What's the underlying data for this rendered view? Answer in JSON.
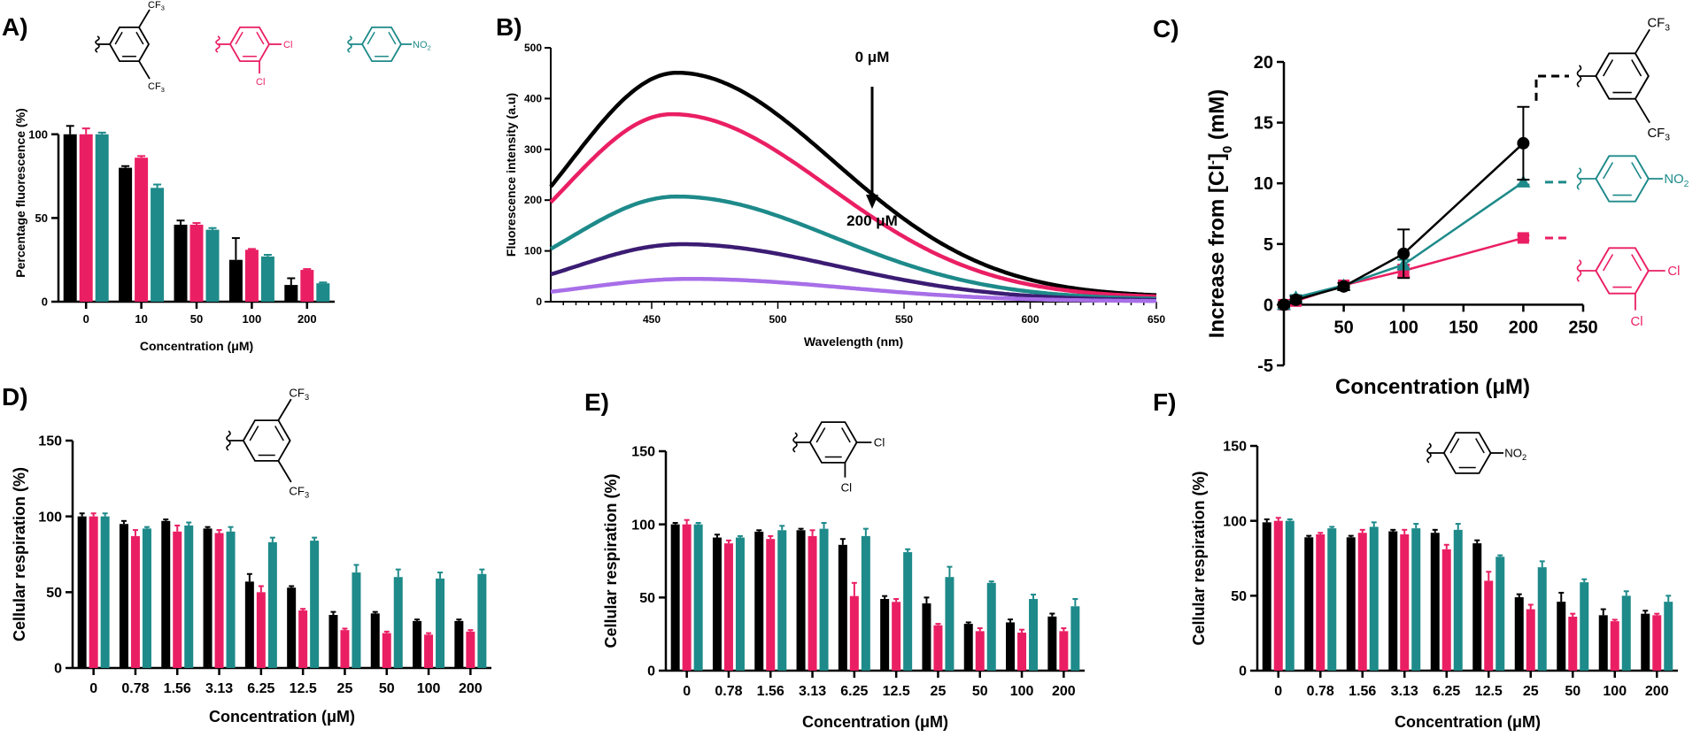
{
  "panel_labels": [
    "A)",
    "B)",
    "C)",
    "D)",
    "E)",
    "F)"
  ],
  "colors": {
    "black": "#000000",
    "pink": "#ea1f63",
    "teal": "#1e8a8a",
    "purple_dark": "#3b1c73",
    "purple_light": "#a86fe8"
  },
  "molecules": {
    "cf3": {
      "sub1": "CF3",
      "sub2": "CF3"
    },
    "dicl": {
      "sub1": "Cl",
      "sub2": "Cl"
    },
    "no2": {
      "sub1": "NO2"
    }
  },
  "chart_data": [
    {
      "panel": "A)",
      "type": "bar",
      "title": "",
      "xlabel": "Concentration (μM)",
      "ylabel": "Percentage fluorescence (%)",
      "ylim": [
        0,
        130
      ],
      "yticks": [
        0,
        50,
        100
      ],
      "categories": [
        "0",
        "10",
        "50",
        "100",
        "200"
      ],
      "series": [
        {
          "color": "#000000",
          "values": [
            100,
            80,
            46,
            25,
            10
          ],
          "errors": [
            5,
            1,
            2.5,
            13,
            4
          ]
        },
        {
          "color": "#ea1f63",
          "values": [
            100,
            86,
            46,
            31,
            19
          ],
          "errors": [
            3.5,
            1,
            1,
            0.5,
            0.5
          ]
        },
        {
          "color": "#1e8a8a",
          "values": [
            100,
            68,
            43,
            27,
            11
          ],
          "errors": [
            1,
            2,
            1,
            1,
            0.5
          ]
        }
      ]
    },
    {
      "panel": "B)",
      "type": "line",
      "title": "",
      "xlabel": "Wavelength (nm)",
      "ylabel": "Fluorescence intensity (a.u)",
      "xlim": [
        410,
        650
      ],
      "ylim": [
        0,
        500
      ],
      "xticks": [
        450,
        500,
        550,
        600,
        650
      ],
      "yticks": [
        0,
        100,
        200,
        300,
        400,
        500
      ],
      "annotation_top": "0 μM",
      "annotation_bottom": "200 μM",
      "series": [
        {
          "color": "#000000",
          "peak": 442,
          "peak_x": 460
        },
        {
          "color": "#ea1f63",
          "peak": 362,
          "peak_x": 458
        },
        {
          "color": "#1e8a8a",
          "peak": 203,
          "peak_x": 460
        },
        {
          "color": "#3b1c73",
          "peak": 111,
          "peak_x": 462
        },
        {
          "color": "#a86fe8",
          "peak": 44,
          "peak_x": 465
        }
      ]
    },
    {
      "panel": "C)",
      "type": "line",
      "title": "",
      "xlabel": "Concentration (μM)",
      "ylabel_main": "Increase from [Cl",
      "ylabel_sup": "-",
      "ylabel_mid": "]",
      "ylabel_sub": "0",
      "ylabel_end": " (mM)",
      "xlim": [
        0,
        250
      ],
      "ylim": [
        -5,
        20
      ],
      "xticks": [
        50,
        100,
        150,
        200,
        250
      ],
      "yticks": [
        -5,
        0,
        5,
        10,
        15,
        20
      ],
      "x": [
        0,
        10,
        50,
        100,
        200
      ],
      "series": [
        {
          "color": "#000000",
          "marker": "circle",
          "values": [
            0,
            0.4,
            1.5,
            4.2,
            13.3
          ],
          "errors": [
            0.2,
            0.3,
            0.3,
            2,
            3
          ]
        },
        {
          "color": "#1e8a8a",
          "marker": "triangle",
          "values": [
            0,
            0.6,
            1.6,
            3.3,
            10.1
          ],
          "errors": [
            0.1,
            0.2,
            0.2,
            0.4,
            0.2
          ]
        },
        {
          "color": "#ea1f63",
          "marker": "square",
          "values": [
            0,
            0.3,
            1.6,
            2.8,
            5.5
          ],
          "errors": [
            0.1,
            0.1,
            0.2,
            0.5,
            0.2
          ]
        }
      ]
    },
    {
      "panel": "D)",
      "type": "bar",
      "title": "",
      "xlabel": "Concentration (μM)",
      "ylabel": "Cellular respiration (%)",
      "ylim": [
        0,
        150
      ],
      "yticks": [
        0,
        50,
        100,
        150
      ],
      "categories": [
        "0",
        "0.78",
        "1.56",
        "3.13",
        "6.25",
        "12.5",
        "25",
        "50",
        "100",
        "200"
      ],
      "series": [
        {
          "color": "#000000",
          "values": [
            100,
            95,
            97,
            92,
            57,
            53,
            35,
            36,
            31,
            31
          ],
          "errors": [
            2,
            2,
            1,
            1,
            5,
            1,
            2,
            1,
            1,
            1
          ]
        },
        {
          "color": "#ea1f63",
          "values": [
            100,
            87,
            90,
            89,
            50,
            38,
            25,
            23,
            22,
            24
          ],
          "errors": [
            2,
            4,
            4,
            2,
            4,
            1,
            1,
            1,
            1,
            1
          ]
        },
        {
          "color": "#1e8a8a",
          "values": [
            100,
            92,
            94,
            90,
            83,
            84,
            63,
            60,
            59,
            62
          ],
          "errors": [
            2,
            1,
            2,
            3,
            3,
            2,
            5,
            5,
            4,
            3
          ]
        }
      ]
    },
    {
      "panel": "E)",
      "type": "bar",
      "title": "",
      "xlabel": "Concentration (μM)",
      "ylabel": "Cellular respiration (%)",
      "ylim": [
        0,
        150
      ],
      "yticks": [
        0,
        50,
        100,
        150
      ],
      "categories": [
        "0",
        "0.78",
        "1.56",
        "3.13",
        "6.25",
        "12.5",
        "25",
        "50",
        "100",
        "200"
      ],
      "series": [
        {
          "color": "#000000",
          "values": [
            100,
            91,
            95,
            96,
            86,
            49,
            46,
            32,
            33,
            37
          ],
          "errors": [
            1,
            2,
            1,
            1,
            4,
            2,
            4,
            1,
            2,
            2
          ]
        },
        {
          "color": "#ea1f63",
          "values": [
            100,
            87,
            90,
            92,
            51,
            47,
            31,
            27,
            26,
            27
          ],
          "errors": [
            3,
            2,
            2,
            4,
            9,
            2,
            1,
            2,
            2,
            2
          ]
        },
        {
          "color": "#1e8a8a",
          "values": [
            100,
            91,
            96,
            97,
            92,
            81,
            64,
            60,
            49,
            44
          ],
          "errors": [
            1,
            1,
            3,
            4,
            5,
            2,
            7,
            1,
            3,
            5
          ]
        }
      ]
    },
    {
      "panel": "F)",
      "type": "bar",
      "title": "",
      "xlabel": "Concentration (μM)",
      "ylabel": "Cellular respiration (%)",
      "ylim": [
        0,
        150
      ],
      "yticks": [
        0,
        50,
        100,
        150
      ],
      "categories": [
        "0",
        "0.78",
        "1.56",
        "3.13",
        "6.25",
        "12.5",
        "25",
        "50",
        "100",
        "200"
      ],
      "series": [
        {
          "color": "#000000",
          "values": [
            99,
            89,
            89,
            93,
            92,
            85,
            49,
            46,
            37,
            38
          ],
          "errors": [
            2,
            1,
            1,
            1,
            2,
            2,
            2,
            6,
            4,
            2
          ]
        },
        {
          "color": "#ea1f63",
          "values": [
            100,
            91,
            92,
            91,
            81,
            60,
            41,
            36,
            33,
            37
          ],
          "errors": [
            2,
            1,
            2,
            3,
            3,
            6,
            3,
            2,
            1,
            1
          ]
        },
        {
          "color": "#1e8a8a",
          "values": [
            100,
            95,
            96,
            95,
            94,
            76,
            69,
            59,
            50,
            46
          ],
          "errors": [
            1,
            1,
            3,
            3,
            4,
            1,
            4,
            2,
            3,
            4
          ]
        }
      ]
    }
  ]
}
